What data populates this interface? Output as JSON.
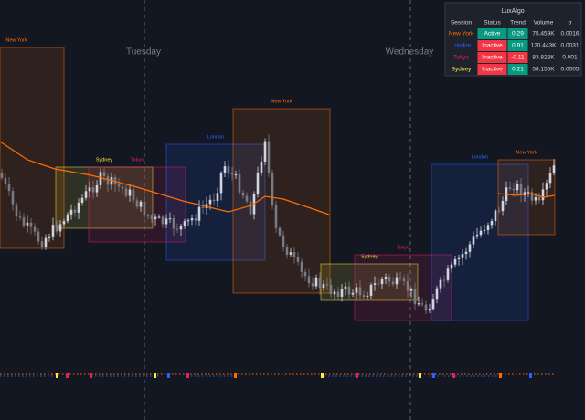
{
  "day_labels": [
    "Tuesday",
    "Wednesday"
  ],
  "session_boxes": [
    {
      "label": "New York",
      "color": "#ff6d00"
    },
    {
      "label": "Sydney",
      "color": "#ffeb3b"
    },
    {
      "label": "Tokyo",
      "color": "#e91e63"
    },
    {
      "label": "London",
      "color": "#2962ff"
    },
    {
      "label": "New York",
      "color": "#ff6d00"
    },
    {
      "label": "Sydney",
      "color": "#ffeb3b"
    },
    {
      "label": "Tokyo",
      "color": "#e91e63"
    },
    {
      "label": "London",
      "color": "#2962ff"
    },
    {
      "label": "New York",
      "color": "#ff6d00"
    }
  ],
  "table": {
    "title": "LuxAlgo",
    "headers": [
      "Session",
      "Status",
      "Trend",
      "Volume",
      "σ"
    ],
    "row_colors": [
      "#ff6d00",
      "#2962ff",
      "#e91e63",
      "#ffeb3b"
    ],
    "rows": [
      [
        "New York",
        "Active",
        0.29,
        "75.459K",
        0.0016
      ],
      [
        "London",
        "Inactive",
        0.91,
        "120.443K",
        0.0031
      ],
      [
        "Tokyo",
        "Inactive",
        -0.11,
        "83.822K",
        0.001
      ],
      [
        "Sydney",
        "Inactive",
        0.21,
        "58.155K",
        0.0005
      ]
    ]
  }
}
